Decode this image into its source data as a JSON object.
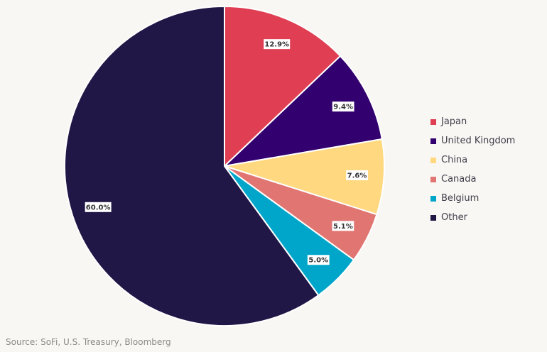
{
  "chart_data": {
    "type": "pie",
    "start_angle_deg": 0,
    "direction": "clockwise",
    "legend_position": "right",
    "slices": [
      {
        "name": "Japan",
        "value": 12.9,
        "label": "12.9%",
        "color": "#e03e52"
      },
      {
        "name": "United Kingdom",
        "value": 9.4,
        "label": "9.4%",
        "color": "#33006f"
      },
      {
        "name": "China",
        "value": 7.6,
        "label": "7.6%",
        "color": "#ffd87f"
      },
      {
        "name": "Canada",
        "value": 5.1,
        "label": "5.1%",
        "color": "#e07572"
      },
      {
        "name": "Belgium",
        "value": 5.0,
        "label": "5.0%",
        "color": "#00a6ca"
      },
      {
        "name": "Other",
        "value": 60.0,
        "label": "60.0%",
        "color": "#201747"
      }
    ]
  },
  "source": "Source: SoFi, U.S. Treasury, Bloomberg"
}
